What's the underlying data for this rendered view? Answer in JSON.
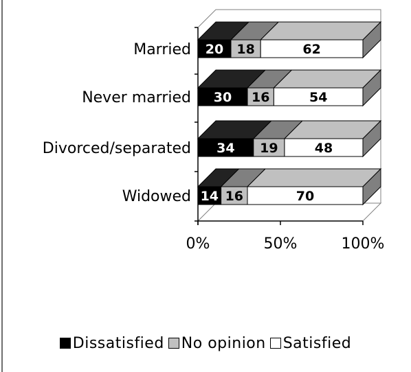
{
  "chart_data": {
    "type": "bar",
    "orientation": "horizontal",
    "stacked": "100%",
    "style": "3d",
    "categories": [
      "Married",
      "Never married",
      "Divorced/separated",
      "Widowed"
    ],
    "series": [
      {
        "name": "Dissatisfied",
        "values": [
          20,
          30,
          34,
          14
        ]
      },
      {
        "name": "No opinion",
        "values": [
          18,
          16,
          19,
          16
        ]
      },
      {
        "name": "Satisfied",
        "values": [
          62,
          54,
          48,
          70
        ]
      }
    ],
    "data_labels": [
      [
        "20",
        "18",
        "62"
      ],
      [
        "30",
        "16",
        "54"
      ],
      [
        "34",
        "19",
        "48"
      ],
      [
        "14",
        "16",
        "70"
      ]
    ],
    "x_ticks": [
      "0%",
      "50%",
      "100%"
    ],
    "xlim": [
      0,
      100
    ],
    "grid": false,
    "legend_position": "bottom"
  },
  "colors": {
    "dissatisfied_front": "#000000",
    "dissatisfied_top": "#222222",
    "no_opinion_front": "#c0c0c0",
    "no_opinion_top": "#808080",
    "satisfied_front": "#ffffff",
    "satisfied_top": "#c0c0c0",
    "side": "#808080",
    "wall": "#ffffff",
    "axis": "#000000"
  }
}
